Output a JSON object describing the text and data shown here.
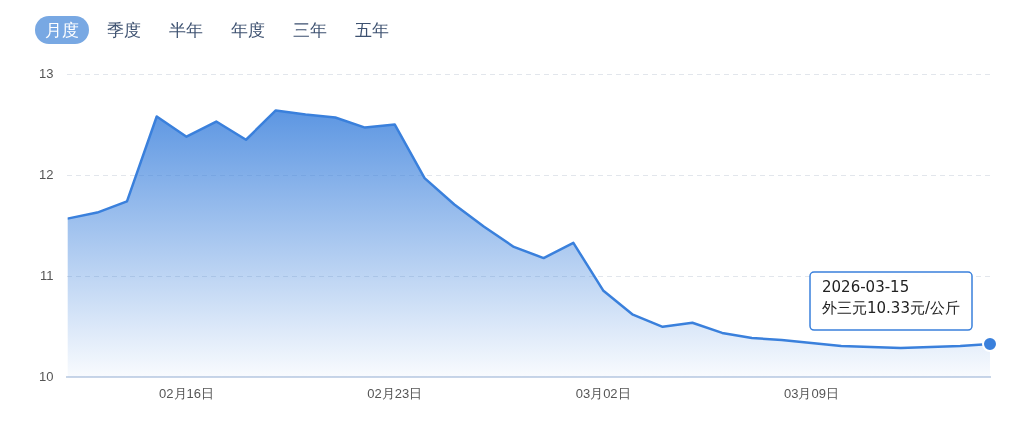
{
  "chart_data": {
    "type": "area",
    "x": [
      "2026-02-12",
      "2026-02-13",
      "2026-02-14",
      "2026-02-15",
      "2026-02-16",
      "2026-02-17",
      "2026-02-18",
      "2026-02-19",
      "2026-02-20",
      "2026-02-21",
      "2026-02-22",
      "2026-02-23",
      "2026-02-24",
      "2026-02-25",
      "2026-02-26",
      "2026-02-27",
      "2026-02-28",
      "2026-03-01",
      "2026-03-02",
      "2026-03-03",
      "2026-03-04",
      "2026-03-05",
      "2026-03-06",
      "2026-03-07",
      "2026-03-08",
      "2026-03-09",
      "2026-03-10",
      "2026-03-11",
      "2026-03-12",
      "2026-03-13",
      "2026-03-14",
      "2026-03-15"
    ],
    "series": [
      {
        "color": "#3a80dc",
        "values": [
          11.57,
          11.63,
          11.74,
          12.58,
          12.38,
          12.53,
          12.35,
          12.64,
          12.6,
          12.57,
          12.47,
          12.5,
          11.97,
          11.71,
          11.49,
          11.29,
          11.18,
          11.33,
          10.86,
          10.62,
          10.5,
          10.54,
          10.44,
          10.39,
          10.37,
          10.34,
          10.31,
          10.3,
          10.29,
          10.3,
          10.31,
          10.33
        ]
      }
    ],
    "xlim": [
      "2026-02-12",
      "2026-03-15"
    ],
    "xticks": [
      {
        "value": "2026-02-16",
        "label": "02月16日"
      },
      {
        "value": "2026-02-23",
        "label": "02月23日"
      },
      {
        "value": "2026-03-02",
        "label": "03月02日"
      },
      {
        "value": "2026-03-09",
        "label": "03月09日"
      }
    ],
    "ylim": [
      10,
      13
    ],
    "yticks": [
      10,
      11,
      12,
      13
    ],
    "grid": "y",
    "line_style": "solid",
    "marker": "none",
    "legend": false,
    "annotations": [
      "月度",
      "季度",
      "半年",
      "年度",
      "三年",
      "五年",
      {
        "text": "2026-03-15\n外三元10.33元/公斤",
        "x": "2026-03-15",
        "y": 10.33
      }
    ]
  }
}
